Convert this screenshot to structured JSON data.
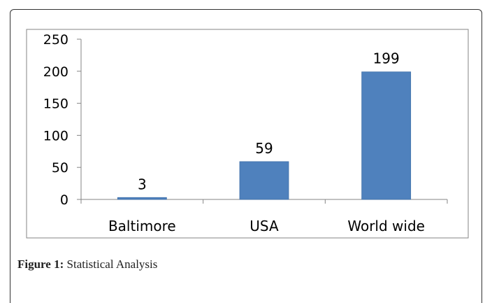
{
  "figure": {
    "caption_label": "Figure 1:",
    "caption_text": "Statistical Analysis"
  },
  "colors": {
    "bar": "#4f81bd",
    "bar_edge": "#3f6fa8",
    "axis": "#868686",
    "plot_border": "#868686"
  },
  "chart_data": {
    "type": "bar",
    "categories": [
      "Baltimore",
      "USA",
      "World wide"
    ],
    "values": [
      3,
      59,
      199
    ],
    "data_labels": [
      "3",
      "59",
      "199"
    ],
    "title": "",
    "xlabel": "",
    "ylabel": "",
    "ylim": [
      0,
      250
    ],
    "yticks": [
      0,
      50,
      100,
      150,
      200,
      250
    ],
    "grid": false,
    "legend": "none"
  }
}
